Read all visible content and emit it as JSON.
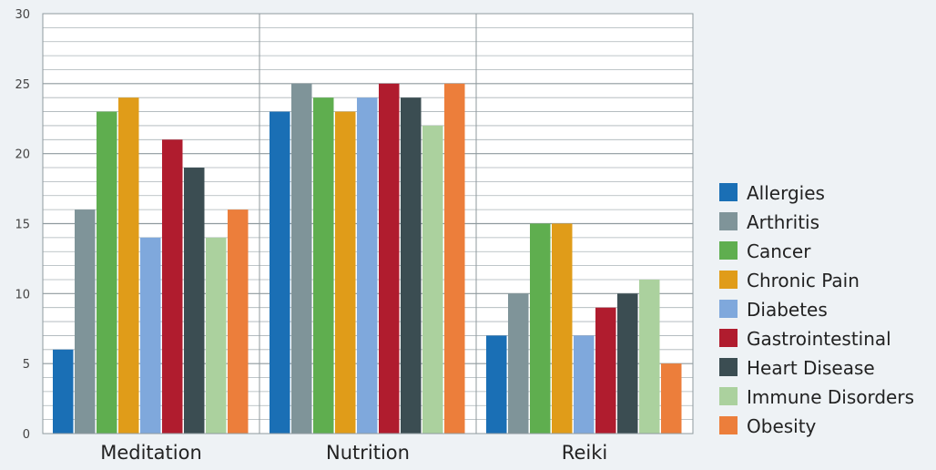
{
  "chart_data": {
    "type": "bar",
    "title": "",
    "xlabel": "",
    "ylabel": "",
    "ylim": [
      0,
      30
    ],
    "y_ticks": [
      "0",
      "5",
      "10",
      "15",
      "20",
      "25",
      "30"
    ],
    "grid": true,
    "legend_position": "right",
    "categories": [
      "Meditation",
      "Nutrition",
      "Reiki"
    ],
    "series": [
      {
        "name": "Allergies",
        "color": "#1a6fb5",
        "values": [
          6,
          23,
          7
        ]
      },
      {
        "name": "Arthritis",
        "color": "#7f9499",
        "values": [
          16,
          25,
          10
        ]
      },
      {
        "name": "Cancer",
        "color": "#5fae4f",
        "values": [
          23,
          24,
          15
        ]
      },
      {
        "name": "Chronic Pain",
        "color": "#e09c19",
        "values": [
          24,
          23,
          15
        ]
      },
      {
        "name": "Diabetes",
        "color": "#7fa8dc",
        "values": [
          14,
          24,
          7
        ]
      },
      {
        "name": "Gastrointestinal",
        "color": "#b01c2e",
        "values": [
          21,
          25,
          9
        ]
      },
      {
        "name": "Heart Disease",
        "color": "#3b4d52",
        "values": [
          19,
          24,
          10
        ]
      },
      {
        "name": "Immune Disorders",
        "color": "#abd19e",
        "values": [
          14,
          22,
          11
        ]
      },
      {
        "name": "Obesity",
        "color": "#ec7e3b",
        "values": [
          16,
          25,
          5
        ]
      }
    ]
  }
}
